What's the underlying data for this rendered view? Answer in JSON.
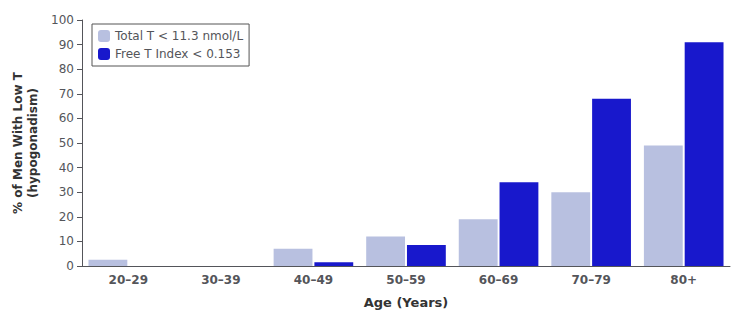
{
  "chart_data": {
    "type": "bar",
    "categories": [
      "20–29",
      "30–39",
      "40–49",
      "50–59",
      "60–69",
      "70–79",
      "80+"
    ],
    "series": [
      {
        "name": "Total T < 11.3 nmol/L",
        "color": "#b8c0e0",
        "values": [
          2.5,
          0,
          7,
          12,
          19,
          30,
          49
        ]
      },
      {
        "name": "Free T Index < 0.153",
        "color": "#1818cc",
        "values": [
          0,
          0,
          1.5,
          8.5,
          34,
          68,
          91
        ]
      }
    ],
    "xlabel": "Age (Years)",
    "ylabel": "% of Men With Low T\n(hypogonadism)",
    "ylim": [
      0,
      100
    ],
    "yticks": [
      0,
      10,
      20,
      30,
      40,
      50,
      60,
      70,
      80,
      90,
      100
    ],
    "grid": false,
    "legend": "upper left"
  }
}
